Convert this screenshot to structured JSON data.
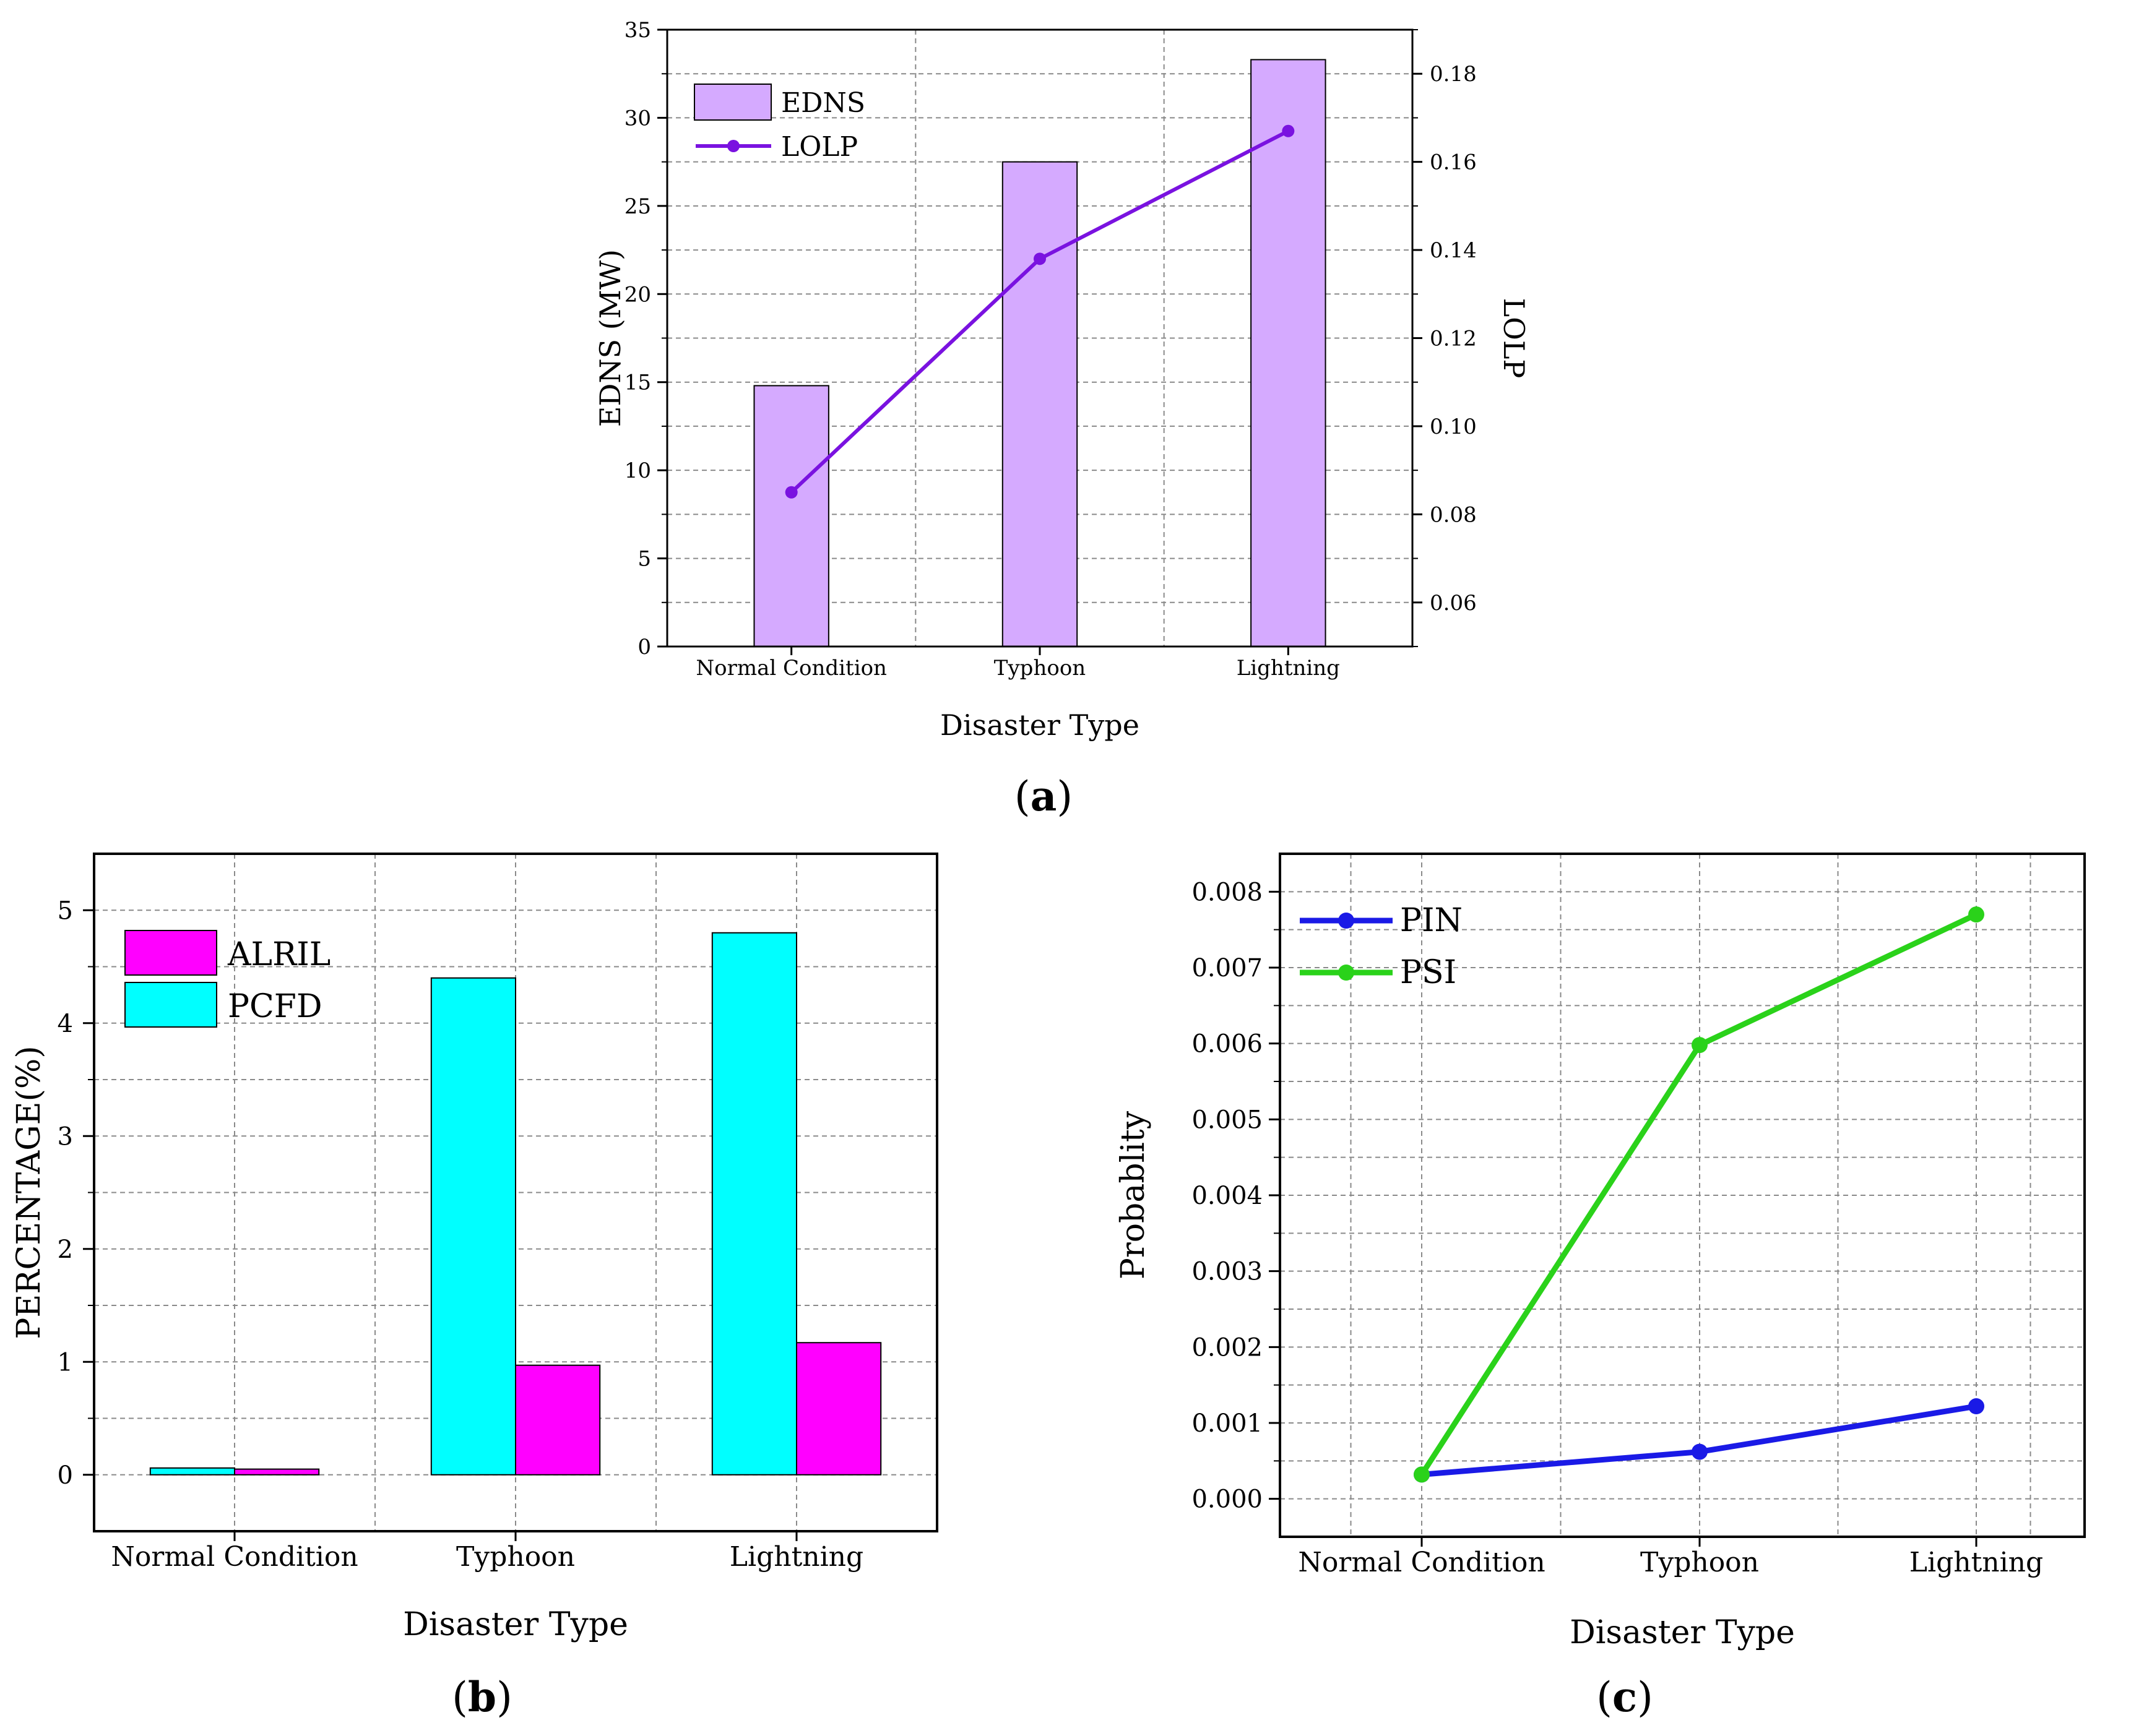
{
  "colors": {
    "edns_fill": "#d5aaff",
    "lolp_line": "#7a12e0",
    "alril_fill": "#ff00ff",
    "pcfd_fill": "#00ffff",
    "pin_line": "#1a1ae6",
    "psi_line": "#2ad21a"
  },
  "chart_data": [
    {
      "panel_label": "a",
      "type": "bar+line",
      "categories": [
        "Normal Condition",
        "Typhoon",
        "Lightning"
      ],
      "xlabel": "Disaster Type",
      "ylabel": "EDNS (MW)",
      "y2label": "LOLP",
      "ylim": [
        0,
        35
      ],
      "yticks": [
        "0",
        "5",
        "10",
        "15",
        "20",
        "25",
        "30",
        "35"
      ],
      "y2lim": [
        0.05,
        0.19
      ],
      "y2ticks": [
        "0.06",
        "0.08",
        "0.10",
        "0.12",
        "0.14",
        "0.16",
        "0.18"
      ],
      "grid": true,
      "legend_position": "top-left",
      "series": [
        {
          "name": "EDNS",
          "kind": "bar",
          "axis": "left",
          "values": [
            14.8,
            27.5,
            33.3
          ]
        },
        {
          "name": "LOLP",
          "kind": "line",
          "axis": "right",
          "values": [
            0.085,
            0.138,
            0.167
          ]
        }
      ]
    },
    {
      "panel_label": "b",
      "type": "bar",
      "categories": [
        "Normal Condition",
        "Typhoon",
        "Lightning"
      ],
      "xlabel": "Disaster Type",
      "ylabel": "PERCENTAGE(%)",
      "ylim": [
        -0.5,
        5.5
      ],
      "yticks": [
        "0",
        "1",
        "2",
        "3",
        "4",
        "5"
      ],
      "grid": true,
      "legend_position": "top-left",
      "series": [
        {
          "name": "ALRIL",
          "values": [
            0.05,
            0.97,
            1.17
          ]
        },
        {
          "name": "PCFD",
          "values": [
            0.06,
            4.4,
            4.8
          ]
        }
      ]
    },
    {
      "panel_label": "c",
      "type": "line",
      "categories": [
        "Normal Condition",
        "Typhoon",
        "Lightning"
      ],
      "xlabel": "Disaster Type",
      "ylabel": "Probablity",
      "ylim": [
        -0.0005,
        0.0085
      ],
      "yticks": [
        "0.000",
        "0.001",
        "0.002",
        "0.003",
        "0.004",
        "0.005",
        "0.006",
        "0.007",
        "0.008"
      ],
      "grid": true,
      "legend_position": "top-left",
      "series": [
        {
          "name": "PIN",
          "values": [
            0.00032,
            0.00062,
            0.00122
          ]
        },
        {
          "name": "PSI",
          "values": [
            0.00032,
            0.00598,
            0.0077
          ]
        }
      ]
    }
  ]
}
